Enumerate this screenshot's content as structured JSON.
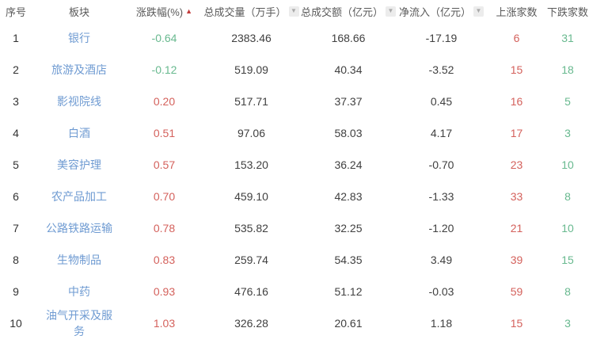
{
  "table": {
    "columns": [
      {
        "key": "index",
        "label": "序号",
        "sort": "none"
      },
      {
        "key": "sector",
        "label": "板块",
        "sort": "none"
      },
      {
        "key": "change",
        "label": "涨跌幅(%)",
        "sort": "asc-active",
        "sort_icon": "sort-asc-icon"
      },
      {
        "key": "volume",
        "label": "总成交量（万手）",
        "sort": "inactive",
        "sort_icon": "sort-desc-icon"
      },
      {
        "key": "turnover",
        "label": "总成交额（亿元）",
        "sort": "inactive",
        "sort_icon": "sort-desc-icon"
      },
      {
        "key": "inflow",
        "label": "净流入（亿元）",
        "sort": "inactive",
        "sort_icon": "sort-desc-icon"
      },
      {
        "key": "up",
        "label": "上涨家数",
        "sort": "none"
      },
      {
        "key": "down",
        "label": "下跌家数",
        "sort": "none"
      }
    ],
    "rows": [
      {
        "index": "1",
        "sector": "银行",
        "change": "-0.64",
        "volume": "2383.46",
        "turnover": "168.66",
        "inflow": "-17.19",
        "up": "6",
        "down": "31"
      },
      {
        "index": "2",
        "sector": "旅游及酒店",
        "change": "-0.12",
        "volume": "519.09",
        "turnover": "40.34",
        "inflow": "-3.52",
        "up": "15",
        "down": "18"
      },
      {
        "index": "3",
        "sector": "影视院线",
        "change": "0.20",
        "volume": "517.71",
        "turnover": "37.37",
        "inflow": "0.45",
        "up": "16",
        "down": "5"
      },
      {
        "index": "4",
        "sector": "白酒",
        "change": "0.51",
        "volume": "97.06",
        "turnover": "58.03",
        "inflow": "4.17",
        "up": "17",
        "down": "3"
      },
      {
        "index": "5",
        "sector": "美容护理",
        "change": "0.57",
        "volume": "153.20",
        "turnover": "36.24",
        "inflow": "-0.70",
        "up": "23",
        "down": "10"
      },
      {
        "index": "6",
        "sector": "农产品加工",
        "change": "0.70",
        "volume": "459.10",
        "turnover": "42.83",
        "inflow": "-1.33",
        "up": "33",
        "down": "8"
      },
      {
        "index": "7",
        "sector": "公路铁路运输",
        "change": "0.78",
        "volume": "535.82",
        "turnover": "32.25",
        "inflow": "-1.20",
        "up": "21",
        "down": "10"
      },
      {
        "index": "8",
        "sector": "生物制品",
        "change": "0.83",
        "volume": "259.74",
        "turnover": "54.35",
        "inflow": "3.49",
        "up": "39",
        "down": "15"
      },
      {
        "index": "9",
        "sector": "中药",
        "change": "0.93",
        "volume": "476.16",
        "turnover": "51.12",
        "inflow": "-0.03",
        "up": "59",
        "down": "8"
      },
      {
        "index": "10",
        "sector": "油气开采及服务",
        "change": "1.03",
        "volume": "326.28",
        "turnover": "20.61",
        "inflow": "1.18",
        "up": "15",
        "down": "3"
      }
    ],
    "colors": {
      "up_red": "#d4615c",
      "down_green": "#68b98f",
      "sector_blue": "#6f9bd2",
      "text_dark": "#404040",
      "header_gray": "#595959",
      "sort_active_red": "#c23c3c",
      "sort_inactive_gray": "#a9a9a9"
    },
    "sort_glyphs": {
      "asc": "▲",
      "desc": "▼"
    }
  }
}
